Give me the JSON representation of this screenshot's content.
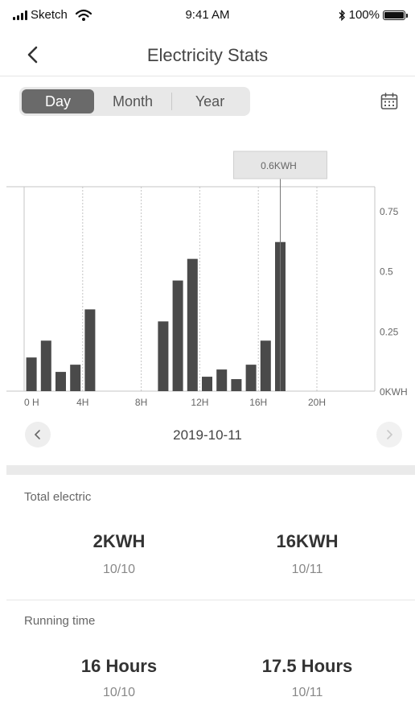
{
  "status_bar": {
    "carrier": "Sketch",
    "time": "9:41 AM",
    "battery": "100%"
  },
  "nav": {
    "title": "Electricity Stats"
  },
  "tabs": [
    {
      "label": "Day",
      "active": true
    },
    {
      "label": "Month",
      "active": false
    },
    {
      "label": "Year",
      "active": false
    }
  ],
  "chart_data": {
    "type": "bar",
    "x_tick_labels": [
      "0 H",
      "4H",
      "8H",
      "12H",
      "16H",
      "20H"
    ],
    "y_tick_labels": [
      "0.75",
      "0.5",
      "0.25",
      "0KWH"
    ],
    "ylim": [
      0,
      0.85
    ],
    "hours": [
      0,
      1,
      2,
      3,
      4,
      9,
      10,
      11,
      12,
      13,
      14,
      15,
      16,
      17
    ],
    "values": [
      0.14,
      0.21,
      0.08,
      0.11,
      0.34,
      0.29,
      0.46,
      0.55,
      0.06,
      0.09,
      0.05,
      0.11,
      0.21,
      0.62
    ],
    "highlight_index": 13,
    "tooltip": "0.6KWH",
    "colors": {
      "bar": "#4a4a4a",
      "grid": "#c4c4c4"
    }
  },
  "date_nav": {
    "date": "2019-10-11",
    "prev_icon": "chevron-left-icon",
    "next_icon": "chevron-right-icon"
  },
  "total_electric": {
    "label": "Total electric",
    "items": [
      {
        "value": "2KWH",
        "date": "10/10"
      },
      {
        "value": "16KWH",
        "date": "10/11"
      }
    ]
  },
  "running_time": {
    "label": "Running time",
    "items": [
      {
        "value": "16 Hours",
        "date": "10/10"
      },
      {
        "value": "17.5 Hours",
        "date": "10/11"
      }
    ]
  }
}
